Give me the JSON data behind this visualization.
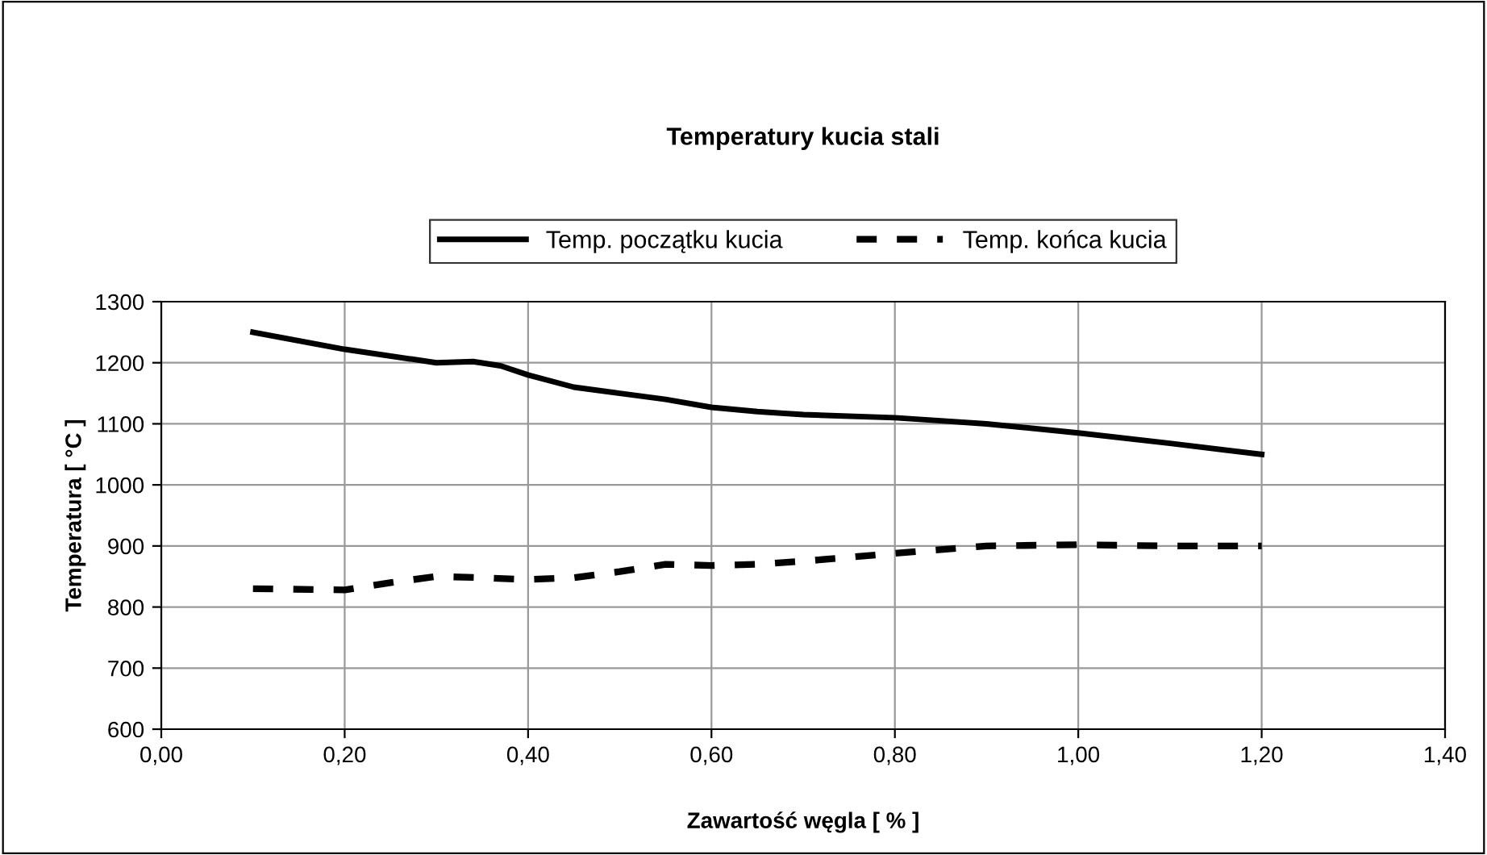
{
  "chart_data": {
    "type": "line",
    "title": "Temperatury kucia stali",
    "xlabel": "Zawartość węgla [ % ]",
    "ylabel": "Temperatura [ °C ]",
    "xlim": [
      0,
      1.4
    ],
    "xticks": [
      {
        "value": 0,
        "label": "0,00"
      },
      {
        "value": 0.2,
        "label": "0,20"
      },
      {
        "value": 0.4,
        "label": "0,40"
      },
      {
        "value": 0.6,
        "label": "0,60"
      },
      {
        "value": 0.8,
        "label": "0,80"
      },
      {
        "value": 1.0,
        "label": "1,00"
      },
      {
        "value": 1.2,
        "label": "1,20"
      },
      {
        "value": 1.4,
        "label": "1,40"
      }
    ],
    "ylim": [
      600,
      1300
    ],
    "yticks": [
      600,
      700,
      800,
      900,
      1000,
      1100,
      1200,
      1300
    ],
    "grid": true,
    "legend": "top",
    "marker": "none",
    "series": [
      {
        "name": "Temp. początku kucia",
        "color": "#000000",
        "line_style": "solid",
        "x": [
          0.1,
          0.2,
          0.3,
          0.34,
          0.37,
          0.4,
          0.45,
          0.5,
          0.55,
          0.6,
          0.65,
          0.7,
          0.8,
          0.85,
          0.9,
          1.0,
          1.1,
          1.2
        ],
        "values": [
          1250,
          1222,
          1200,
          1202,
          1195,
          1180,
          1160,
          1150,
          1140,
          1127,
          1120,
          1115,
          1110,
          1105,
          1100,
          1085,
          1068,
          1050
        ]
      },
      {
        "name": "Temp. końca kucia",
        "color": "#000000",
        "line_style": "dashed",
        "x": [
          0.1,
          0.2,
          0.25,
          0.3,
          0.35,
          0.4,
          0.45,
          0.5,
          0.55,
          0.6,
          0.65,
          0.7,
          0.8,
          0.9,
          1.0,
          1.1,
          1.2
        ],
        "values": [
          830,
          828,
          840,
          850,
          848,
          845,
          848,
          858,
          870,
          868,
          870,
          875,
          888,
          900,
          902,
          900,
          900
        ]
      }
    ]
  }
}
